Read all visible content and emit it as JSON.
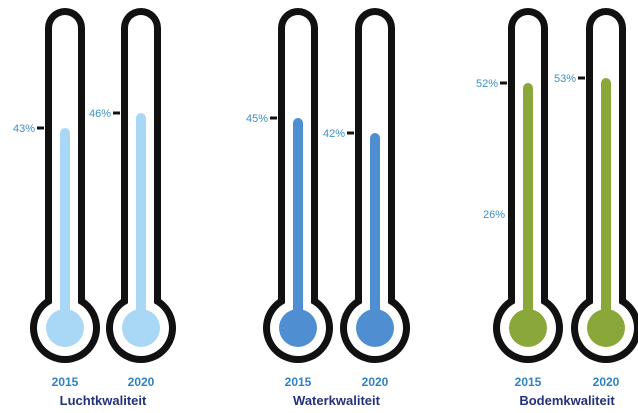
{
  "chart_data": {
    "type": "bar",
    "orientation": "vertical-thermometer",
    "ylim": [
      0,
      100
    ],
    "groups": [
      {
        "name": "Luchtkwaliteit",
        "color": "#a8d8f5",
        "bars": [
          {
            "year": "2015",
            "value": 43,
            "label": "43%"
          },
          {
            "year": "2020",
            "value": 46,
            "label": "46%"
          }
        ]
      },
      {
        "name": "Waterkwaliteit",
        "color": "#4f8fd1",
        "bars": [
          {
            "year": "2015",
            "value": 45,
            "label": "45%"
          },
          {
            "year": "2020",
            "value": 42,
            "label": "42%"
          }
        ]
      },
      {
        "name": "Bodemkwaliteit",
        "color": "#8aa83a",
        "bars": [
          {
            "year": "2015",
            "value": 52,
            "label": "52%",
            "extra_label": "26%"
          },
          {
            "year": "2020",
            "value": 53,
            "label": "53%"
          }
        ]
      }
    ]
  }
}
